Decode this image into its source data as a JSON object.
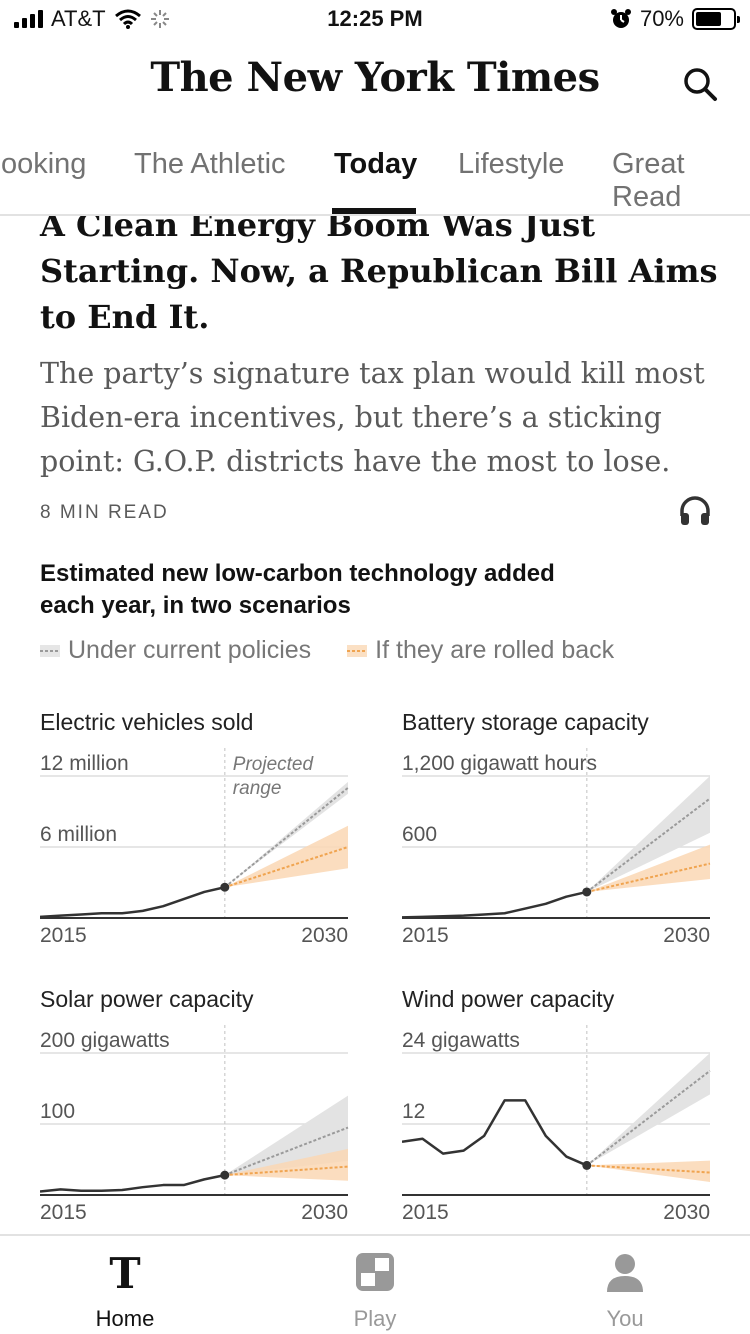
{
  "status_bar": {
    "carrier": "AT&T",
    "time": "12:25 PM",
    "battery": "70%",
    "battery_level": 0.7
  },
  "masthead": {
    "logo_text": "The New York Times"
  },
  "tabs": [
    {
      "label": "Cooking"
    },
    {
      "label": "The Athletic"
    },
    {
      "label": "Today"
    },
    {
      "label": "Lifestyle"
    },
    {
      "label": "Great Read"
    }
  ],
  "article": {
    "headline_line1": "A Clean Energy Boom Was Just",
    "headline_line2": "Starting. Now, a Republican Bill Aims",
    "headline_line3": "to End It.",
    "summary_line1": "The party’s signature tax plan would kill most",
    "summary_line2": "Biden-era incentives, but there’s a sticking",
    "summary_line3": "point: G.O.P. districts have the most to lose.",
    "read_time": "8 MIN READ"
  },
  "chart": {
    "title_line1": "Estimated new low-carbon technology added",
    "title_line2": "each year, in two scenarios",
    "legend_current": "Under current policies",
    "legend_rolled": "If they are rolled back",
    "color_current": "#9a9a9a",
    "color_rolled": "#f0a450",
    "projected_label_1": "Projected",
    "projected_label_2": "range"
  },
  "chart_data": [
    {
      "type": "line",
      "title": "Electric vehicles sold",
      "y_top_label": "12 million",
      "y_mid_label": "6 million",
      "ylim": [
        0,
        12
      ],
      "xlim": [
        2015,
        2030
      ],
      "x_tick_left": "2015",
      "x_tick_right": "2030",
      "history": {
        "x": [
          2015,
          2016,
          2017,
          2018,
          2019,
          2020,
          2021,
          2022,
          2023,
          2024
        ],
        "y": [
          0.1,
          0.2,
          0.3,
          0.4,
          0.4,
          0.6,
          1.0,
          1.6,
          2.2,
          2.6
        ]
      },
      "current": {
        "start": [
          2024,
          2.6
        ],
        "end": [
          2030,
          11.0
        ],
        "upper": 11.5,
        "lower": 10.5
      },
      "rolled": {
        "start": [
          2024,
          2.6
        ],
        "end": [
          2030,
          6.0
        ],
        "upper": 7.8,
        "lower": 4.2
      }
    },
    {
      "type": "line",
      "title": "Battery storage capacity",
      "y_top_label": "1,200 gigawatt hours",
      "y_mid_label": "600",
      "ylim": [
        0,
        1200
      ],
      "xlim": [
        2015,
        2030
      ],
      "x_tick_left": "2015",
      "x_tick_right": "2030",
      "history": {
        "x": [
          2015,
          2016,
          2017,
          2018,
          2019,
          2020,
          2021,
          2022,
          2023,
          2024
        ],
        "y": [
          5,
          10,
          15,
          20,
          30,
          40,
          80,
          120,
          180,
          220
        ]
      },
      "current": {
        "start": [
          2024,
          220
        ],
        "end": [
          2030,
          1010
        ],
        "upper": 1200,
        "lower": 720
      },
      "rolled": {
        "start": [
          2024,
          220
        ],
        "end": [
          2030,
          460
        ],
        "upper": 620,
        "lower": 330
      }
    },
    {
      "type": "line",
      "title": "Solar power capacity",
      "y_top_label": "200 gigawatts",
      "y_mid_label": "100",
      "ylim": [
        0,
        200
      ],
      "xlim": [
        2015,
        2030
      ],
      "x_tick_left": "2015",
      "x_tick_right": "2030",
      "history": {
        "x": [
          2015,
          2016,
          2017,
          2018,
          2019,
          2020,
          2021,
          2022,
          2023,
          2024
        ],
        "y": [
          5,
          8,
          6,
          6,
          7,
          11,
          14,
          14,
          22,
          28
        ]
      },
      "current": {
        "start": [
          2024,
          28
        ],
        "end": [
          2030,
          95
        ],
        "upper": 140,
        "lower": 48
      },
      "rolled": {
        "start": [
          2024,
          28
        ],
        "end": [
          2030,
          40
        ],
        "upper": 65,
        "lower": 20
      }
    },
    {
      "type": "line",
      "title": "Wind power capacity",
      "y_top_label": "24 gigawatts",
      "y_mid_label": "12",
      "ylim": [
        0,
        24
      ],
      "xlim": [
        2015,
        2030
      ],
      "x_tick_left": "2015",
      "x_tick_right": "2030",
      "history": {
        "x": [
          2015,
          2016,
          2017,
          2018,
          2019,
          2020,
          2021,
          2022,
          2023,
          2024
        ],
        "y": [
          9,
          9.5,
          7,
          7.5,
          10,
          16,
          16,
          10,
          6.5,
          5
        ]
      },
      "current": {
        "start": [
          2024,
          5
        ],
        "end": [
          2030,
          21
        ],
        "upper": 24,
        "lower": 17
      },
      "rolled": {
        "start": [
          2024,
          5
        ],
        "end": [
          2030,
          3.8
        ],
        "upper": 5.8,
        "lower": 2.2
      }
    }
  ],
  "bottom_nav": {
    "home_label": "Home",
    "play_label": "Play",
    "you_label": "You"
  }
}
